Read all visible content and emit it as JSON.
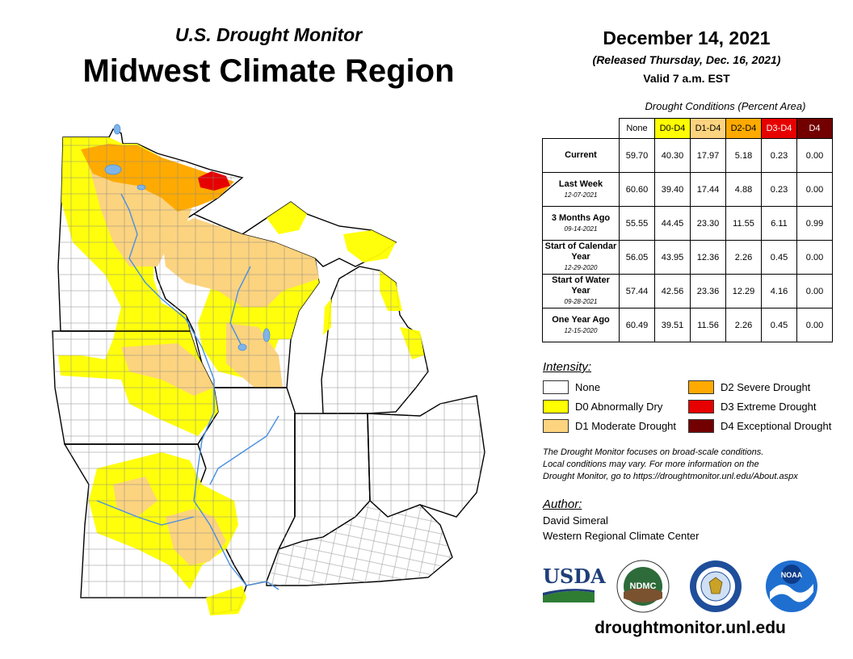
{
  "header": {
    "subtitle": "U.S. Drought Monitor",
    "title": "Midwest Climate Region",
    "date": "December 14, 2021",
    "released": "(Released Thursday, Dec. 16, 2021)",
    "valid": "Valid 7 a.m. EST"
  },
  "conditions": {
    "title": "Drought Conditions (Percent Area)",
    "columns": [
      {
        "label": "None",
        "color": "#ffffff"
      },
      {
        "label": "D0-D4",
        "color": "#ffff00"
      },
      {
        "label": "D1-D4",
        "color": "#fcd37f"
      },
      {
        "label": "D2-D4",
        "color": "#ffaa00"
      },
      {
        "label": "D3-D4",
        "color": "#e60000"
      },
      {
        "label": "D4",
        "color": "#730000"
      }
    ],
    "rows": [
      {
        "label": "Current",
        "sub": "",
        "values": [
          "59.70",
          "40.30",
          "17.97",
          "5.18",
          "0.23",
          "0.00"
        ]
      },
      {
        "label": "Last Week",
        "sub": "12-07-2021",
        "values": [
          "60.60",
          "39.40",
          "17.44",
          "4.88",
          "0.23",
          "0.00"
        ]
      },
      {
        "label": "3 Months Ago",
        "sub": "09-14-2021",
        "values": [
          "55.55",
          "44.45",
          "23.30",
          "11.55",
          "6.11",
          "0.99"
        ]
      },
      {
        "label": "Start of Calendar Year",
        "sub": "12-29-2020",
        "values": [
          "56.05",
          "43.95",
          "12.36",
          "2.26",
          "0.45",
          "0.00"
        ]
      },
      {
        "label": "Start of Water Year",
        "sub": "09-28-2021",
        "values": [
          "57.44",
          "42.56",
          "23.36",
          "12.29",
          "4.16",
          "0.00"
        ]
      },
      {
        "label": "One Year Ago",
        "sub": "12-15-2020",
        "values": [
          "60.49",
          "39.51",
          "11.56",
          "2.26",
          "0.45",
          "0.00"
        ]
      }
    ]
  },
  "legend": {
    "heading": "Intensity:",
    "items": [
      {
        "label": "None",
        "color": "#ffffff"
      },
      {
        "label": "D0 Abnormally Dry",
        "color": "#ffff00"
      },
      {
        "label": "D1 Moderate Drought",
        "color": "#fcd37f"
      },
      {
        "label": "D2 Severe Drought",
        "color": "#ffaa00"
      },
      {
        "label": "D3 Extreme Drought",
        "color": "#e60000"
      },
      {
        "label": "D4 Exceptional Drought",
        "color": "#730000"
      }
    ]
  },
  "note": {
    "line1": "The Drought Monitor focuses on broad-scale conditions.",
    "line2": "Local conditions may vary. For more information on the",
    "line3": "Drought Monitor, go to https://droughtmonitor.unl.edu/About.aspx"
  },
  "author": {
    "heading": "Author:",
    "name": "David Simeral",
    "org": "Western Regional Climate Center"
  },
  "logos": {
    "usda": "USDA",
    "ndmc": "NDMC",
    "noaa": "NOAA"
  },
  "footer": {
    "url": "droughtmonitor.unl.edu"
  }
}
